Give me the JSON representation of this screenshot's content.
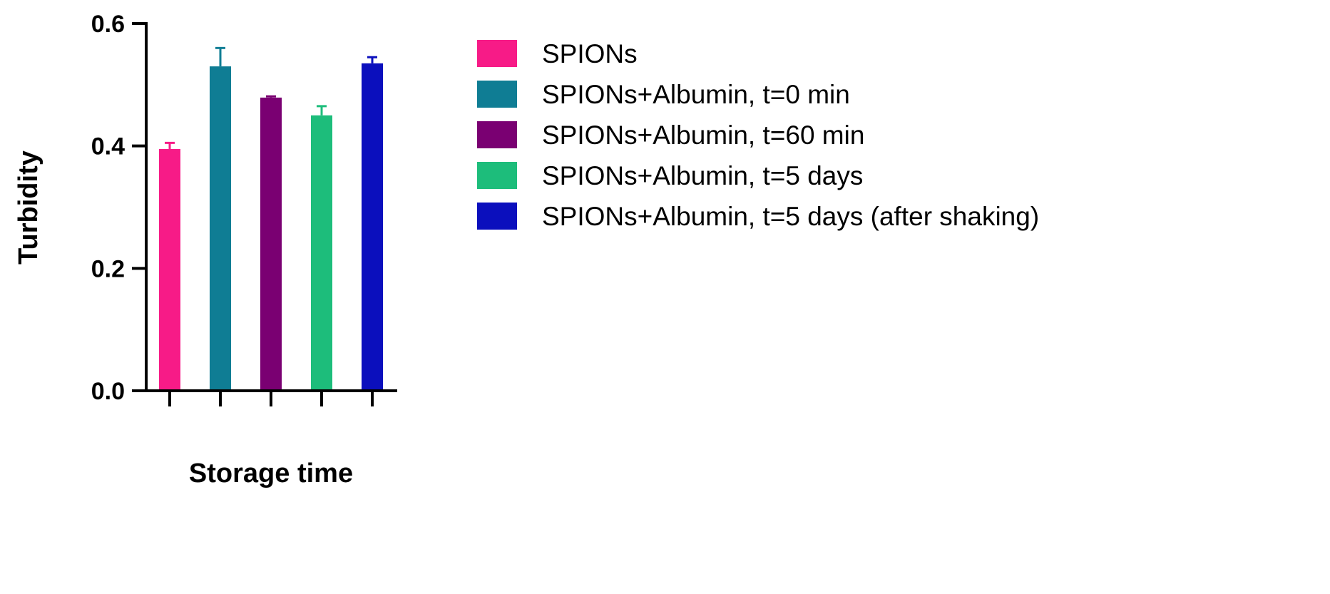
{
  "chart_data": {
    "type": "bar",
    "title": "",
    "xlabel": "Storage time",
    "ylabel": "Turbidity",
    "ylim": [
      0,
      0.6
    ],
    "yticks": [
      0.0,
      0.2,
      0.4,
      0.6
    ],
    "ytick_labels": [
      "0.0",
      "0.2",
      "0.4",
      "0.6"
    ],
    "grid": false,
    "legend_position": "right",
    "series": [
      {
        "name": "SPIONs",
        "value": 0.395,
        "error": 0.01,
        "color": "#f71b87"
      },
      {
        "name": "SPIONs+Albumin, t=0 min",
        "value": 0.53,
        "error": 0.03,
        "color": "#0f7d94"
      },
      {
        "name": "SPIONs+Albumin, t=60 min",
        "value": 0.479,
        "error": 0.002,
        "color": "#7a0072"
      },
      {
        "name": "SPIONs+Albumin, t=5 days",
        "value": 0.45,
        "error": 0.015,
        "color": "#1dbd7b"
      },
      {
        "name": "SPIONs+Albumin, t=5 days (after shaking)",
        "value": 0.535,
        "error": 0.01,
        "color": "#0b0fbd"
      }
    ]
  }
}
